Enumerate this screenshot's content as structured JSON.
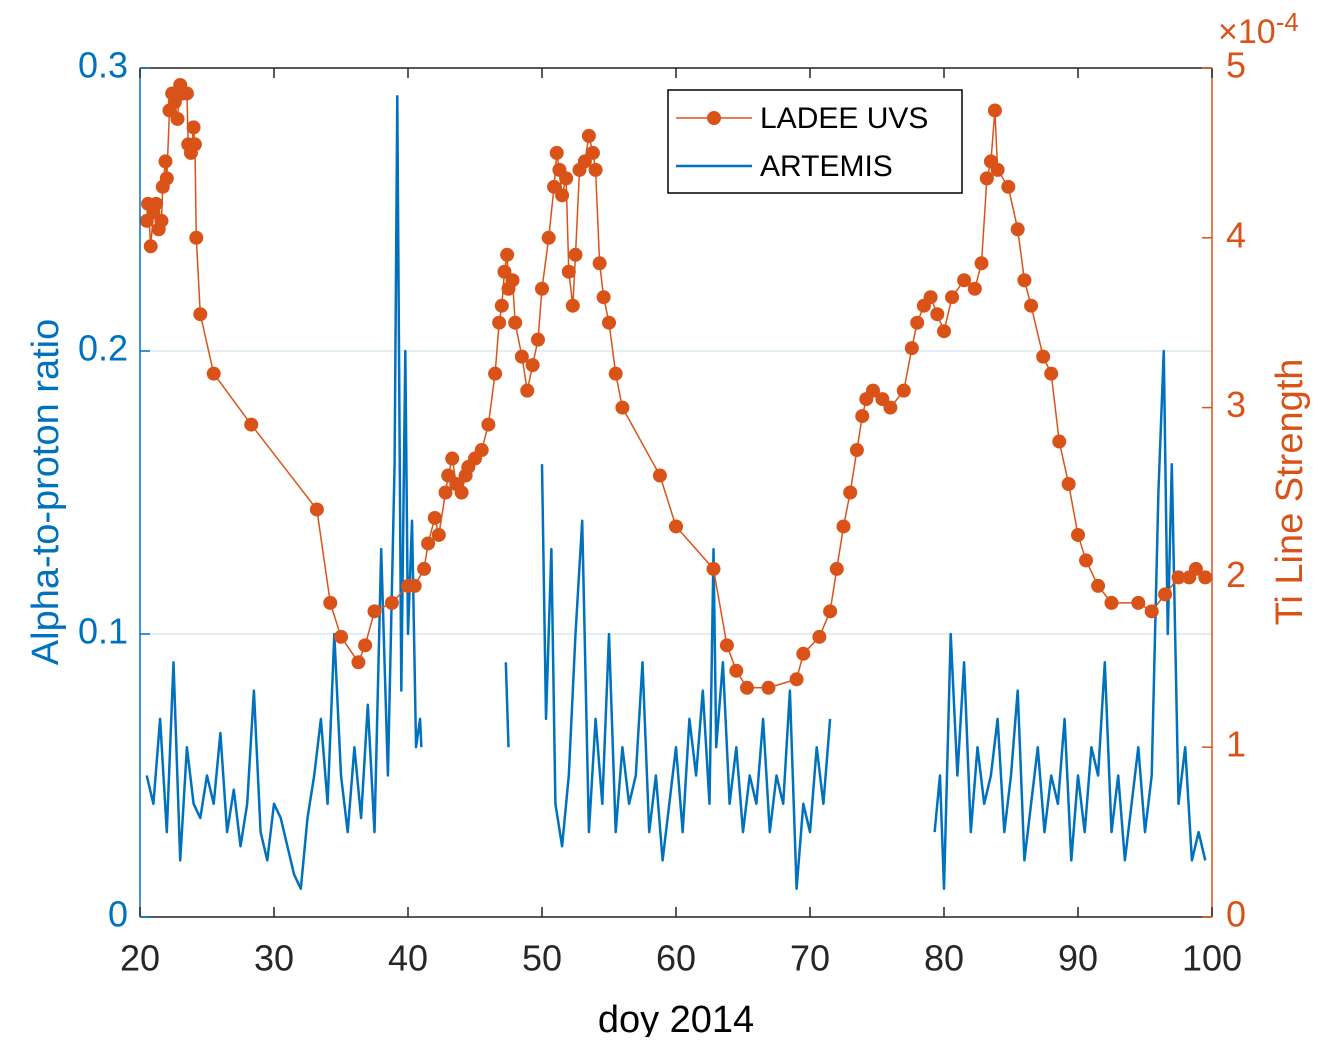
{
  "chart_data": {
    "type": "line",
    "xlabel": "doy 2014",
    "ylabel": "Alpha-to-proton ratio",
    "y2label": "Ti Line Strength",
    "y2_scale_base": "×10",
    "y2_scale_exponent": "-4",
    "xlim": [
      20,
      100
    ],
    "xticks": [
      20,
      30,
      40,
      50,
      60,
      70,
      80,
      90,
      100
    ],
    "ylim": [
      0,
      0.3
    ],
    "yticks": [
      0,
      0.1,
      0.2,
      0.3
    ],
    "y2lim": [
      0,
      5
    ],
    "y2ticks": [
      0,
      1,
      2,
      3,
      4,
      5
    ],
    "grid": true,
    "series": [
      {
        "name": "LADEE UVS",
        "color": "#d95319",
        "axis": "y2",
        "marker": "circle",
        "x": [
          20.5,
          20.6,
          20.8,
          21,
          21.2,
          21.4,
          21.6,
          21.7,
          21.9,
          22,
          22.2,
          22.4,
          22.6,
          22.8,
          23,
          23.2,
          23.5,
          23.6,
          23.8,
          24,
          24.1,
          24.2,
          24.5,
          25.5,
          28.3,
          33.2,
          34.2,
          35,
          36.3,
          36.8,
          37.5,
          38.8,
          40,
          40.5,
          41.2,
          41.5,
          42,
          42.3,
          42.8,
          43,
          43.3,
          43.6,
          44,
          44.3,
          44.5,
          45,
          45.5,
          46,
          46.5,
          46.8,
          47,
          47.2,
          47.4,
          47.5,
          47.8,
          48,
          48.5,
          48.9,
          49.3,
          49.7,
          50,
          50.5,
          50.9,
          51.1,
          51.3,
          51.5,
          51.8,
          52,
          52.3,
          52.5,
          52.8,
          53.2,
          53.5,
          53.8,
          54,
          54.3,
          54.6,
          55,
          55.5,
          56,
          58.8,
          60,
          62.8,
          63.8,
          64.5,
          65.3,
          66.9,
          69,
          69.5,
          70.7,
          71.5,
          72,
          72.5,
          73,
          73.5,
          73.9,
          74.2,
          74.7,
          75.4,
          76,
          77,
          77.6,
          78,
          78.5,
          79,
          79.5,
          80,
          80.6,
          81.5,
          82.3,
          82.8,
          83.2,
          83.5,
          83.8,
          84,
          84.8,
          85.5,
          86,
          86.5,
          87.4,
          88,
          88.6,
          89.3,
          90,
          90.6,
          91.5,
          92.5,
          94.5,
          95.5,
          96.5,
          97.5,
          98.3,
          98.8,
          99.5
        ],
        "values": [
          4.1,
          4.2,
          3.95,
          4.15,
          4.2,
          4.05,
          4.1,
          4.3,
          4.45,
          4.35,
          4.75,
          4.85,
          4.8,
          4.7,
          4.9,
          4.85,
          4.85,
          4.55,
          4.5,
          4.65,
          4.55,
          4.0,
          3.55,
          3.2,
          2.9,
          2.4,
          1.85,
          1.65,
          1.5,
          1.6,
          1.8,
          1.85,
          1.95,
          1.95,
          2.05,
          2.2,
          2.35,
          2.25,
          2.5,
          2.6,
          2.7,
          2.55,
          2.5,
          2.6,
          2.65,
          2.7,
          2.75,
          2.9,
          3.2,
          3.5,
          3.6,
          3.8,
          3.9,
          3.7,
          3.75,
          3.5,
          3.3,
          3.1,
          3.25,
          3.4,
          3.7,
          4.0,
          4.3,
          4.5,
          4.4,
          4.25,
          4.35,
          3.8,
          3.6,
          3.9,
          4.4,
          4.45,
          4.6,
          4.5,
          4.4,
          3.85,
          3.65,
          3.5,
          3.2,
          3.0,
          2.6,
          2.3,
          2.05,
          1.6,
          1.45,
          1.35,
          1.35,
          1.4,
          1.55,
          1.65,
          1.8,
          2.05,
          2.3,
          2.5,
          2.75,
          2.95,
          3.05,
          3.1,
          3.05,
          3.0,
          3.1,
          3.35,
          3.5,
          3.6,
          3.65,
          3.55,
          3.45,
          3.65,
          3.75,
          3.7,
          3.85,
          4.35,
          4.45,
          4.75,
          4.4,
          4.3,
          4.05,
          3.75,
          3.6,
          3.3,
          3.2,
          2.8,
          2.55,
          2.25,
          2.1,
          1.95,
          1.85,
          1.85,
          1.8,
          1.9,
          2.0,
          2.0,
          2.05,
          2.0
        ]
      },
      {
        "name": "ARTEMIS",
        "color": "#0072bd",
        "x": [
          20.5,
          21,
          21.5,
          22,
          22.5,
          23,
          23.5,
          24,
          24.5,
          25,
          25.5,
          26,
          26.5,
          27,
          27.5,
          28,
          28.5,
          29,
          29.5,
          30,
          30.5,
          31,
          31.5,
          32,
          32.5,
          33,
          33.5,
          34,
          34.5,
          35,
          35.5,
          36,
          36.5,
          37,
          37.5,
          38,
          38.5,
          39,
          39.2,
          39.5,
          39.8,
          40,
          40.3,
          40.6,
          40.9,
          41,
          41.2,
          47.3,
          47.5,
          47.6,
          49.5,
          49.6,
          50,
          50.3,
          50.7,
          51,
          51.5,
          52,
          52.5,
          53,
          53.5,
          54,
          54.5,
          55,
          55.5,
          56,
          56.5,
          57,
          57.5,
          58,
          58.5,
          59,
          59.5,
          60,
          60.5,
          61,
          61.5,
          62,
          62.5,
          62.8,
          63,
          63.5,
          64,
          64.5,
          65,
          65.5,
          66,
          66.5,
          67,
          67.5,
          68,
          68.5,
          69,
          69.5,
          70,
          70.5,
          71,
          71.5,
          71.7,
          79.3,
          79.7,
          80,
          80.5,
          81,
          81.5,
          82,
          82.5,
          83,
          83.5,
          84,
          84.5,
          85,
          85.5,
          86,
          86.5,
          87,
          87.5,
          88,
          88.5,
          89,
          89.5,
          90,
          90.5,
          91,
          91.5,
          92,
          92.5,
          93,
          93.5,
          94,
          94.5,
          95,
          95.5,
          96,
          96.4,
          96.7,
          97,
          97.5,
          98,
          98.5,
          99,
          99.5
        ],
        "values": [
          0.05,
          0.04,
          0.07,
          0.03,
          0.09,
          0.02,
          0.06,
          0.04,
          0.035,
          0.05,
          0.04,
          0.065,
          0.03,
          0.045,
          0.025,
          0.04,
          0.08,
          0.03,
          0.02,
          0.04,
          0.035,
          0.025,
          0.015,
          0.01,
          0.035,
          0.05,
          0.07,
          0.04,
          0.1,
          0.05,
          0.03,
          0.06,
          0.035,
          0.075,
          0.03,
          0.13,
          0.05,
          0.16,
          0.29,
          0.08,
          0.2,
          0.1,
          0.14,
          0.06,
          0.07,
          0.06,
          null,
          0.09,
          0.06,
          null,
          0.035,
          null,
          0.16,
          0.07,
          0.13,
          0.04,
          0.025,
          0.05,
          0.1,
          0.14,
          0.03,
          0.07,
          0.04,
          0.1,
          0.03,
          0.06,
          0.04,
          0.05,
          0.09,
          0.03,
          0.05,
          0.02,
          0.04,
          0.06,
          0.03,
          0.07,
          0.05,
          0.08,
          0.04,
          0.13,
          0.06,
          0.09,
          0.04,
          0.06,
          0.03,
          0.05,
          0.04,
          0.07,
          0.03,
          0.05,
          0.04,
          0.08,
          0.01,
          0.04,
          0.03,
          0.06,
          0.04,
          0.07,
          null,
          0.03,
          0.05,
          0.01,
          0.1,
          0.05,
          0.09,
          0.03,
          0.06,
          0.04,
          0.05,
          0.07,
          0.03,
          0.05,
          0.08,
          0.02,
          0.04,
          0.06,
          0.03,
          0.05,
          0.04,
          0.07,
          0.02,
          0.05,
          0.03,
          0.06,
          0.05,
          0.09,
          0.03,
          0.05,
          0.02,
          0.04,
          0.06,
          0.03,
          0.05,
          0.15,
          0.2,
          0.1,
          0.16,
          0.04,
          0.06,
          0.02,
          0.03,
          0.02
        ]
      }
    ]
  }
}
